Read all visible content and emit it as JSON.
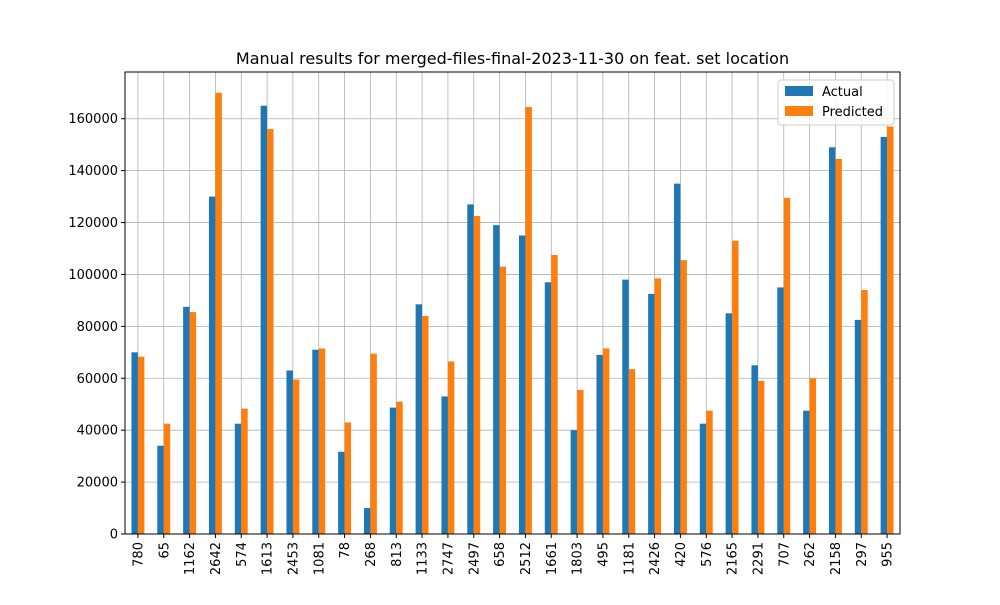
{
  "chart_data": {
    "type": "bar",
    "title": "Manual results for merged-files-final-2023-11-30 on feat. set location",
    "xlabel": "",
    "ylabel": "",
    "ylim": [
      0,
      178000
    ],
    "yticks": [
      0,
      20000,
      40000,
      60000,
      80000,
      100000,
      120000,
      140000,
      160000
    ],
    "grid": true,
    "legend_position": "top-right",
    "categories": [
      "780",
      "65",
      "1162",
      "2642",
      "574",
      "1613",
      "2453",
      "1081",
      "78",
      "268",
      "813",
      "1133",
      "2747",
      "2497",
      "658",
      "2512",
      "1661",
      "1803",
      "495",
      "1181",
      "2426",
      "420",
      "576",
      "2165",
      "2291",
      "707",
      "262",
      "2158",
      "297",
      "955"
    ],
    "series": [
      {
        "name": "Actual",
        "color": "#1f77b4",
        "values": [
          70000,
          34000,
          87500,
          130000,
          42500,
          165000,
          63000,
          71000,
          31700,
          10000,
          48700,
          88500,
          53000,
          127000,
          119000,
          115000,
          97000,
          40000,
          69000,
          98000,
          92500,
          135000,
          42500,
          85000,
          65000,
          95000,
          47500,
          149000,
          82500,
          153000
        ]
      },
      {
        "name": "Predicted",
        "color": "#ff7f0e",
        "values": [
          68300,
          42500,
          85500,
          170000,
          48300,
          156000,
          59500,
          71500,
          43000,
          69500,
          51000,
          84000,
          66500,
          122500,
          103000,
          164500,
          107500,
          55500,
          71500,
          63500,
          98500,
          105500,
          47500,
          113000,
          59000,
          129500,
          60000,
          144500,
          94000,
          157000
        ]
      }
    ]
  }
}
